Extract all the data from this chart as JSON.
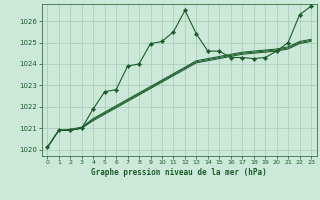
{
  "title": "Graphe pression niveau de la mer (hPa)",
  "bg_color": "#cce8d8",
  "grid_color": "#a8c8b8",
  "line_color": "#1a5c2a",
  "xlim": [
    -0.5,
    23.5
  ],
  "ylim": [
    1019.7,
    1026.8
  ],
  "yticks": [
    1020,
    1021,
    1022,
    1023,
    1024,
    1025,
    1026
  ],
  "xticks": [
    0,
    1,
    2,
    3,
    4,
    5,
    6,
    7,
    8,
    9,
    10,
    11,
    12,
    13,
    14,
    15,
    16,
    17,
    18,
    19,
    20,
    21,
    22,
    23
  ],
  "series1_x": [
    0,
    1,
    2,
    3,
    4,
    5,
    6,
    7,
    8,
    9,
    10,
    11,
    12,
    13,
    14,
    15,
    16,
    17,
    18,
    19,
    20,
    21,
    22,
    23
  ],
  "series1_y": [
    1020.1,
    1020.9,
    1020.9,
    1021.0,
    1021.9,
    1022.7,
    1022.8,
    1023.9,
    1024.0,
    1024.95,
    1025.05,
    1025.5,
    1026.5,
    1025.4,
    1024.6,
    1024.6,
    1024.3,
    1024.3,
    1024.25,
    1024.3,
    1024.6,
    1025.0,
    1026.3,
    1026.7
  ],
  "series2_x": [
    0,
    1,
    2,
    3,
    4,
    5,
    6,
    7,
    8,
    9,
    10,
    11,
    12,
    13,
    14,
    15,
    16,
    17,
    18,
    19,
    20,
    21,
    22,
    23
  ],
  "series2_y": [
    1020.1,
    1020.9,
    1020.9,
    1021.0,
    1021.35,
    1021.65,
    1021.95,
    1022.25,
    1022.55,
    1022.85,
    1023.15,
    1023.45,
    1023.75,
    1024.05,
    1024.15,
    1024.25,
    1024.35,
    1024.45,
    1024.5,
    1024.55,
    1024.6,
    1024.7,
    1024.95,
    1025.05
  ],
  "series3_x": [
    0,
    1,
    2,
    3,
    4,
    5,
    6,
    7,
    8,
    9,
    10,
    11,
    12,
    13,
    14,
    15,
    16,
    17,
    18,
    19,
    20,
    21,
    22,
    23
  ],
  "series3_y": [
    1020.1,
    1020.9,
    1020.9,
    1021.0,
    1021.4,
    1021.7,
    1022.0,
    1022.3,
    1022.6,
    1022.9,
    1023.2,
    1023.5,
    1023.8,
    1024.1,
    1024.2,
    1024.3,
    1024.4,
    1024.5,
    1024.55,
    1024.6,
    1024.65,
    1024.75,
    1025.0,
    1025.1
  ],
  "series4_x": [
    0,
    1,
    2,
    3,
    4,
    5,
    6,
    7,
    8,
    9,
    10,
    11,
    12,
    13,
    14,
    15,
    16,
    17,
    18,
    19,
    20,
    21,
    22,
    23
  ],
  "series4_y": [
    1020.1,
    1020.9,
    1020.95,
    1021.05,
    1021.45,
    1021.75,
    1022.05,
    1022.35,
    1022.65,
    1022.95,
    1023.25,
    1023.55,
    1023.85,
    1024.15,
    1024.25,
    1024.35,
    1024.45,
    1024.55,
    1024.6,
    1024.65,
    1024.7,
    1024.8,
    1025.05,
    1025.15
  ]
}
